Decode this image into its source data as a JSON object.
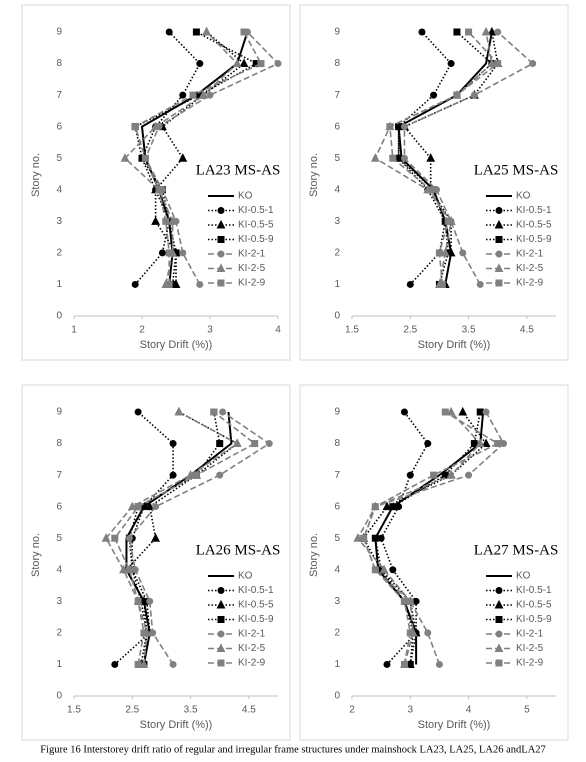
{
  "chart_data": [
    {
      "type": "line",
      "title": "LA23 MS-AS",
      "x_label": "Story Drift (%))",
      "y_label": "Story no.",
      "xlim": [
        1,
        4
      ],
      "xticks": [
        1,
        2,
        3,
        4
      ],
      "ylim": [
        0,
        9
      ],
      "yticks": [
        0,
        1,
        2,
        3,
        4,
        5,
        6,
        7,
        8,
        9
      ],
      "grid": false,
      "legend": "right",
      "y": [
        1,
        2,
        3,
        4,
        5,
        6,
        7,
        8,
        9
      ],
      "series": [
        {
          "name": "KO",
          "color": "#000000",
          "line_style": "solid",
          "marker": "none",
          "values": [
            2.4,
            2.45,
            2.4,
            2.25,
            2.05,
            2.0,
            2.8,
            3.4,
            3.55
          ]
        },
        {
          "name": "KI-0.5-1",
          "color": "#000000",
          "line_style": "dotted",
          "marker": "circle",
          "values": [
            1.9,
            2.3,
            2.4,
            2.2,
            2.0,
            2.2,
            2.6,
            2.85,
            2.4
          ]
        },
        {
          "name": "KI-0.5-5",
          "color": "#000000",
          "line_style": "dotted",
          "marker": "triangle",
          "values": [
            2.5,
            2.5,
            2.2,
            2.2,
            2.6,
            2.3,
            2.9,
            3.5,
            2.95
          ]
        },
        {
          "name": "KI-0.5-9",
          "color": "#000000",
          "line_style": "dotted",
          "marker": "square",
          "values": [
            2.45,
            2.5,
            2.4,
            2.3,
            2.0,
            1.9,
            2.85,
            3.68,
            2.8
          ]
        },
        {
          "name": "KI-2-1",
          "color": "#808080",
          "line_style": "dashed",
          "marker": "circle",
          "values": [
            2.85,
            2.6,
            2.5,
            2.3,
            2.05,
            2.25,
            3.0,
            4.0,
            3.55
          ]
        },
        {
          "name": "KI-2-5",
          "color": "#808080",
          "line_style": "dashed",
          "marker": "triangle",
          "values": [
            2.35,
            2.45,
            2.45,
            2.25,
            1.75,
            2.2,
            2.9,
            3.4,
            2.95
          ]
        },
        {
          "name": "KI-2-9",
          "color": "#808080",
          "line_style": "dashed",
          "marker": "square",
          "values": [
            2.4,
            2.4,
            2.35,
            2.25,
            2.05,
            1.9,
            2.75,
            3.75,
            3.5
          ]
        }
      ]
    },
    {
      "type": "line",
      "title": "LA25 MS-AS",
      "x_label": "Story Drift (%))",
      "y_label": "Story no.",
      "xlim": [
        1.5,
        5
      ],
      "xticks": [
        1.5,
        2.5,
        3.5,
        4.5
      ],
      "ylim": [
        0,
        9
      ],
      "yticks": [
        0,
        1,
        2,
        3,
        4,
        5,
        6,
        7,
        8,
        9
      ],
      "grid": false,
      "legend": "right",
      "y": [
        1,
        2,
        3,
        4,
        5,
        6,
        7,
        8,
        9
      ],
      "series": [
        {
          "name": "KO",
          "color": "#000000",
          "line_style": "solid",
          "marker": "none",
          "values": [
            3.1,
            3.2,
            3.1,
            2.9,
            2.35,
            2.3,
            3.3,
            3.8,
            3.9
          ]
        },
        {
          "name": "KI-0.5-1",
          "color": "#000000",
          "line_style": "dotted",
          "marker": "circle",
          "values": [
            2.5,
            3.0,
            3.1,
            2.8,
            2.3,
            2.3,
            2.9,
            3.2,
            2.7
          ]
        },
        {
          "name": "KI-0.5-5",
          "color": "#000000",
          "line_style": "dotted",
          "marker": "triangle",
          "values": [
            3.1,
            3.2,
            3.2,
            2.85,
            2.85,
            2.4,
            3.6,
            4.0,
            3.9
          ]
        },
        {
          "name": "KI-0.5-9",
          "color": "#000000",
          "line_style": "dotted",
          "marker": "square",
          "values": [
            3.0,
            3.15,
            3.1,
            2.9,
            2.3,
            2.3,
            3.3,
            3.9,
            3.3
          ]
        },
        {
          "name": "KI-2-1",
          "color": "#808080",
          "line_style": "dashed",
          "marker": "circle",
          "values": [
            3.7,
            3.4,
            3.2,
            2.95,
            2.4,
            2.4,
            3.6,
            4.6,
            4.0
          ]
        },
        {
          "name": "KI-2-5",
          "color": "#808080",
          "line_style": "dashed",
          "marker": "triangle",
          "values": [
            3.0,
            3.1,
            3.2,
            2.8,
            1.9,
            2.15,
            3.3,
            3.9,
            3.8
          ]
        },
        {
          "name": "KI-2-9",
          "color": "#808080",
          "line_style": "dashed",
          "marker": "square",
          "values": [
            3.05,
            3.0,
            3.15,
            2.85,
            2.2,
            2.15,
            3.3,
            4.0,
            3.5
          ]
        }
      ]
    },
    {
      "type": "line",
      "title": "LA26 MS-AS",
      "x_label": "Story Drift (%))",
      "y_label": "Story no.",
      "xlim": [
        1.5,
        5
      ],
      "xticks": [
        1.5,
        2.5,
        3.5,
        4.5
      ],
      "ylim": [
        0,
        9
      ],
      "yticks": [
        0,
        1,
        2,
        3,
        4,
        5,
        6,
        7,
        8,
        9
      ],
      "grid": false,
      "legend": "right",
      "y": [
        1,
        2,
        3,
        4,
        5,
        6,
        7,
        8,
        9
      ],
      "series": [
        {
          "name": "KO",
          "color": "#000000",
          "line_style": "solid",
          "marker": "none",
          "values": [
            2.7,
            2.8,
            2.7,
            2.4,
            2.4,
            2.7,
            3.5,
            4.2,
            4.15
          ]
        },
        {
          "name": "KI-0.5-1",
          "color": "#000000",
          "line_style": "dotted",
          "marker": "circle",
          "values": [
            2.2,
            2.8,
            2.75,
            2.5,
            2.5,
            2.7,
            3.2,
            3.2,
            2.6
          ]
        },
        {
          "name": "KI-0.5-5",
          "color": "#000000",
          "line_style": "dotted",
          "marker": "triangle",
          "values": [
            2.65,
            2.75,
            2.7,
            2.4,
            2.9,
            2.8,
            3.6,
            4.3,
            3.3
          ]
        },
        {
          "name": "KI-0.5-9",
          "color": "#000000",
          "line_style": "dotted",
          "marker": "square",
          "values": [
            2.7,
            2.75,
            2.65,
            2.5,
            2.45,
            2.6,
            3.6,
            4.0,
            3.9
          ]
        },
        {
          "name": "KI-2-1",
          "color": "#808080",
          "line_style": "dashed",
          "marker": "circle",
          "values": [
            3.2,
            2.85,
            2.8,
            2.55,
            2.45,
            2.9,
            4.0,
            4.85,
            4.05
          ]
        },
        {
          "name": "KI-2-5",
          "color": "#808080",
          "line_style": "dashed",
          "marker": "triangle",
          "values": [
            2.7,
            2.75,
            2.6,
            2.35,
            2.05,
            2.5,
            3.5,
            4.3,
            3.3
          ]
        },
        {
          "name": "KI-2-9",
          "color": "#808080",
          "line_style": "dashed",
          "marker": "square",
          "values": [
            2.6,
            2.7,
            2.6,
            2.45,
            2.2,
            2.6,
            3.6,
            4.6,
            3.9
          ]
        }
      ]
    },
    {
      "type": "line",
      "title": "LA27 MS-AS",
      "x_label": "Story Drift (%))",
      "y_label": "Story no.",
      "xlim": [
        2,
        5.5
      ],
      "xticks": [
        2,
        3,
        4,
        5
      ],
      "ylim": [
        0,
        9
      ],
      "yticks": [
        0,
        1,
        2,
        3,
        4,
        5,
        6,
        7,
        8,
        9
      ],
      "grid": false,
      "legend": "right",
      "y": [
        1,
        2,
        3,
        4,
        5,
        6,
        7,
        8,
        9
      ],
      "series": [
        {
          "name": "KO",
          "color": "#000000",
          "line_style": "solid",
          "marker": "none",
          "values": [
            3.1,
            3.1,
            2.9,
            2.45,
            2.4,
            2.7,
            3.5,
            4.2,
            4.25
          ]
        },
        {
          "name": "KI-0.5-1",
          "color": "#000000",
          "line_style": "dotted",
          "marker": "circle",
          "values": [
            2.6,
            3.1,
            3.1,
            2.7,
            2.5,
            2.8,
            3.0,
            3.3,
            2.9
          ]
        },
        {
          "name": "KI-0.5-5",
          "color": "#000000",
          "line_style": "dotted",
          "marker": "triangle",
          "values": [
            3.0,
            3.1,
            3.0,
            2.5,
            2.2,
            2.6,
            3.7,
            4.3,
            3.9
          ]
        },
        {
          "name": "KI-0.5-9",
          "color": "#000000",
          "line_style": "dotted",
          "marker": "square",
          "values": [
            3.0,
            3.05,
            2.9,
            2.5,
            2.4,
            2.7,
            3.6,
            4.1,
            4.2
          ]
        },
        {
          "name": "KI-2-1",
          "color": "#808080",
          "line_style": "dashed",
          "marker": "circle",
          "values": [
            3.5,
            3.3,
            3.0,
            2.4,
            2.2,
            2.4,
            4.0,
            4.6,
            4.3
          ]
        },
        {
          "name": "KI-2-5",
          "color": "#808080",
          "line_style": "dashed",
          "marker": "triangle",
          "values": [
            2.9,
            3.05,
            3.0,
            2.55,
            2.1,
            2.4,
            3.7,
            4.2,
            3.7
          ]
        },
        {
          "name": "KI-2-9",
          "color": "#808080",
          "line_style": "dashed",
          "marker": "square",
          "values": [
            2.9,
            3.0,
            2.9,
            2.4,
            2.2,
            2.4,
            3.4,
            4.5,
            3.6
          ]
        }
      ]
    }
  ],
  "caption": "Figure 16 Interstorey drift ratio of regular and irregular frame structures under mainshock LA23, LA25, LA26 andLA27"
}
